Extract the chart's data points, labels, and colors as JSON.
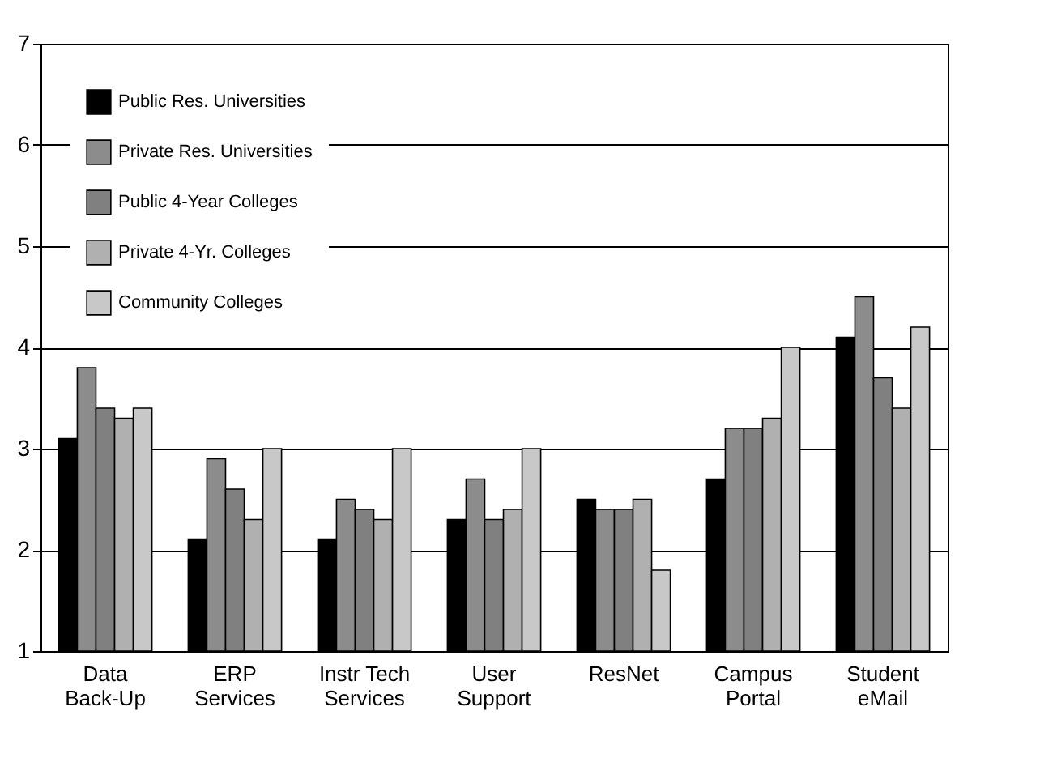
{
  "chart_data": {
    "type": "bar",
    "categories": [
      "Data Back-Up",
      "ERP Services",
      "Instr Tech Services",
      "User Support",
      "ResNet",
      "Campus Portal",
      "Student eMail"
    ],
    "series": [
      {
        "name": "Public Res. Universities",
        "color": "#000000",
        "values": [
          3.1,
          2.1,
          2.1,
          2.3,
          2.5,
          2.7,
          4.1
        ]
      },
      {
        "name": "Private Res. Universities",
        "color": "#8c8c8c",
        "values": [
          3.8,
          2.9,
          2.5,
          2.7,
          2.4,
          3.2,
          4.5
        ]
      },
      {
        "name": "Public 4-Year Colleges",
        "color": "#808080",
        "values": [
          3.4,
          2.6,
          2.4,
          2.3,
          2.4,
          3.2,
          3.7
        ]
      },
      {
        "name": "Private 4-Yr. Colleges",
        "color": "#b0b0b0",
        "values": [
          3.3,
          2.3,
          2.3,
          2.4,
          2.5,
          3.3,
          3.4
        ]
      },
      {
        "name": "Community Colleges",
        "color": "#c8c8c8",
        "values": [
          3.4,
          3.0,
          3.0,
          3.0,
          1.8,
          4.0,
          4.2
        ]
      }
    ],
    "ylim": [
      1,
      7
    ],
    "yticks": [
      1,
      2,
      3,
      4,
      5,
      6,
      7
    ],
    "grid": "y",
    "legend": "top left"
  }
}
